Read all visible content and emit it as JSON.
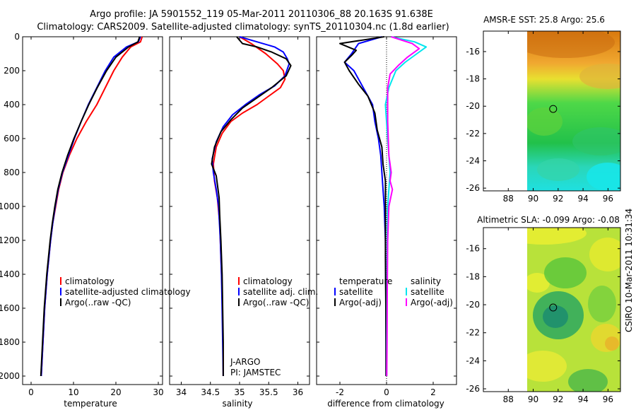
{
  "figure": {
    "title_line1": "Argo profile: JA 5901552_119 05-Mar-2011 20110306_88 20.163S 91.638E",
    "title_line2": "Climatology: CARS2009. Satellite-adjusted climatology: synTS_20110304.nc (1.8d earlier)",
    "credit": "CSIRO 10-Mar-2011 10:31:34",
    "program": "J-ARGO",
    "pi": "PI: JAMSTEC"
  },
  "colors": {
    "climatology": "#ff0000",
    "satellite": "#0000ff",
    "argo": "#000000",
    "sal_satellite": "#00e5ee",
    "sal_argo": "#ff00ff"
  },
  "chart_data": [
    {
      "id": "temperature",
      "type": "line",
      "xlabel": "temperature",
      "ylabel": "",
      "xlim": [
        -2,
        31
      ],
      "ylim": [
        2050,
        0
      ],
      "xticks": [
        0,
        10,
        20,
        30
      ],
      "yticks": [
        0,
        200,
        400,
        600,
        800,
        1000,
        1200,
        1400,
        1600,
        1800,
        2000
      ],
      "legend": [
        "climatology",
        "satellite-adjusted climatology",
        "Argo(..raw -QC)"
      ],
      "series": [
        {
          "name": "climatology",
          "color": "#ff0000",
          "points": [
            [
              26.2,
              0
            ],
            [
              25.8,
              30
            ],
            [
              23.5,
              60
            ],
            [
              21.5,
              120
            ],
            [
              19.5,
              200
            ],
            [
              17.5,
              300
            ],
            [
              15.5,
              400
            ],
            [
              13,
              500
            ],
            [
              10.8,
              600
            ],
            [
              9,
              700
            ],
            [
              7.5,
              800
            ],
            [
              6.5,
              900
            ],
            [
              5.8,
              1000
            ],
            [
              5.1,
              1100
            ],
            [
              4.6,
              1200
            ],
            [
              4.2,
              1300
            ],
            [
              3.8,
              1400
            ],
            [
              3.5,
              1500
            ],
            [
              3.2,
              1600
            ],
            [
              3,
              1700
            ],
            [
              2.8,
              1800
            ],
            [
              2.6,
              1900
            ],
            [
              2.4,
              2000
            ]
          ]
        },
        {
          "name": "satellite-adjusted climatology",
          "color": "#0000ff",
          "points": [
            [
              25.8,
              0
            ],
            [
              25.3,
              30
            ],
            [
              22.5,
              60
            ],
            [
              19.5,
              120
            ],
            [
              17.5,
              200
            ],
            [
              15.5,
              300
            ],
            [
              13.5,
              400
            ],
            [
              11.8,
              500
            ],
            [
              10.2,
              600
            ],
            [
              8.8,
              700
            ],
            [
              7.4,
              800
            ],
            [
              6.4,
              900
            ],
            [
              5.7,
              1000
            ],
            [
              5.1,
              1100
            ],
            [
              4.6,
              1200
            ],
            [
              4.2,
              1300
            ],
            [
              3.8,
              1400
            ],
            [
              3.5,
              1500
            ],
            [
              3.2,
              1600
            ],
            [
              3,
              1700
            ],
            [
              2.8,
              1800
            ],
            [
              2.6,
              1900
            ],
            [
              2.4,
              2000
            ]
          ]
        },
        {
          "name": "Argo(..raw -QC)",
          "color": "#000000",
          "points": [
            [
              25.6,
              0
            ],
            [
              25.2,
              30
            ],
            [
              23,
              60
            ],
            [
              20,
              120
            ],
            [
              17.8,
              200
            ],
            [
              15.6,
              300
            ],
            [
              13.6,
              400
            ],
            [
              11.8,
              500
            ],
            [
              10.1,
              600
            ],
            [
              8.6,
              700
            ],
            [
              7.3,
              800
            ],
            [
              6.3,
              900
            ],
            [
              5.6,
              1000
            ],
            [
              5,
              1100
            ],
            [
              4.5,
              1200
            ],
            [
              4.1,
              1300
            ],
            [
              3.7,
              1400
            ],
            [
              3.4,
              1500
            ],
            [
              3.1,
              1600
            ],
            [
              2.9,
              1700
            ],
            [
              2.7,
              1800
            ],
            [
              2.5,
              1900
            ],
            [
              2.3,
              2000
            ]
          ]
        }
      ]
    },
    {
      "id": "salinity",
      "type": "line",
      "xlabel": "salinity",
      "ylabel": "",
      "xlim": [
        33.8,
        36.2
      ],
      "ylim": [
        2050,
        0
      ],
      "xticks": [
        34,
        34.5,
        35,
        35.5,
        36
      ],
      "yticks": [
        0,
        200,
        400,
        600,
        800,
        1000,
        1200,
        1400,
        1600,
        1800,
        2000
      ],
      "legend": [
        "climatology",
        "satellite adj. clim.",
        "Argo(..raw -QC)"
      ],
      "series": [
        {
          "name": "climatology",
          "color": "#ff0000",
          "points": [
            [
              35,
              0
            ],
            [
              35.2,
              40
            ],
            [
              35.45,
              100
            ],
            [
              35.65,
              160
            ],
            [
              35.75,
              200
            ],
            [
              35.78,
              250
            ],
            [
              35.7,
              300
            ],
            [
              35.5,
              350
            ],
            [
              35.3,
              400
            ],
            [
              35.05,
              450
            ],
            [
              34.85,
              500
            ],
            [
              34.7,
              570
            ],
            [
              34.6,
              650
            ],
            [
              34.55,
              750
            ],
            [
              34.57,
              850
            ],
            [
              34.62,
              950
            ],
            [
              34.66,
              1100
            ],
            [
              34.68,
              1300
            ],
            [
              34.7,
              1500
            ],
            [
              34.71,
              1700
            ],
            [
              34.72,
              1900
            ],
            [
              34.72,
              2000
            ]
          ]
        },
        {
          "name": "satellite adj. clim.",
          "color": "#0000ff",
          "points": [
            [
              35,
              0
            ],
            [
              35.3,
              30
            ],
            [
              35.6,
              60
            ],
            [
              35.75,
              90
            ],
            [
              35.82,
              130
            ],
            [
              35.85,
              160
            ],
            [
              35.78,
              230
            ],
            [
              35.6,
              290
            ],
            [
              35.35,
              340
            ],
            [
              35.1,
              400
            ],
            [
              34.88,
              460
            ],
            [
              34.72,
              530
            ],
            [
              34.6,
              620
            ],
            [
              34.53,
              720
            ],
            [
              34.55,
              800
            ],
            [
              34.6,
              900
            ],
            [
              34.64,
              1000
            ],
            [
              34.67,
              1200
            ],
            [
              34.69,
              1400
            ],
            [
              34.7,
              1600
            ],
            [
              34.71,
              1800
            ],
            [
              34.72,
              2000
            ]
          ]
        },
        {
          "name": "Argo(..raw -QC)",
          "color": "#000000",
          "points": [
            [
              34.95,
              0
            ],
            [
              35,
              20
            ],
            [
              35.05,
              40
            ],
            [
              35.3,
              60
            ],
            [
              35.55,
              90
            ],
            [
              35.8,
              130
            ],
            [
              35.88,
              170
            ],
            [
              35.8,
              230
            ],
            [
              35.55,
              300
            ],
            [
              35.3,
              360
            ],
            [
              35.05,
              420
            ],
            [
              34.85,
              490
            ],
            [
              34.68,
              560
            ],
            [
              34.57,
              650
            ],
            [
              34.52,
              750
            ],
            [
              34.6,
              820
            ],
            [
              34.62,
              870
            ],
            [
              34.65,
              950
            ],
            [
              34.66,
              1050
            ],
            [
              34.68,
              1200
            ],
            [
              34.7,
              1400
            ],
            [
              34.71,
              1600
            ],
            [
              34.72,
              1800
            ],
            [
              34.72,
              2000
            ]
          ]
        }
      ]
    },
    {
      "id": "difference",
      "type": "line",
      "xlabel": "difference from climatology",
      "ylabel": "",
      "xlim": [
        -3,
        3
      ],
      "ylim": [
        2050,
        0
      ],
      "xticks": [
        -2,
        0,
        2
      ],
      "yticks": [
        0,
        200,
        400,
        600,
        800,
        1000,
        1200,
        1400,
        1600,
        1800,
        2000
      ],
      "legend_temperature": [
        "temperature",
        "satellite",
        "Argo(-adj)"
      ],
      "legend_salinity": [
        "salinity",
        "satellite",
        "Argo(-adj)"
      ],
      "series": [
        {
          "name": "temperature satellite",
          "color": "#0000ff",
          "points": [
            [
              -0.2,
              0
            ],
            [
              -1.2,
              40
            ],
            [
              -1.5,
              100
            ],
            [
              -1.8,
              150
            ],
            [
              -1.4,
              200
            ],
            [
              -1,
              300
            ],
            [
              -0.6,
              400
            ],
            [
              -0.5,
              500
            ],
            [
              -0.35,
              600
            ],
            [
              -0.25,
              700
            ],
            [
              -0.2,
              800
            ],
            [
              -0.15,
              900
            ],
            [
              -0.1,
              1000
            ],
            [
              -0.05,
              1200
            ],
            [
              -0.03,
              1500
            ],
            [
              -0.02,
              1800
            ],
            [
              -0.02,
              2000
            ]
          ]
        },
        {
          "name": "temperature Argo(-adj)",
          "color": "#000000",
          "points": [
            [
              -0.1,
              0
            ],
            [
              -2,
              40
            ],
            [
              -1.3,
              80
            ],
            [
              -1.5,
              110
            ],
            [
              -1.8,
              150
            ],
            [
              -1.6,
              200
            ],
            [
              -1.2,
              280
            ],
            [
              -0.8,
              350
            ],
            [
              -0.5,
              450
            ],
            [
              -0.4,
              550
            ],
            [
              -0.2,
              650
            ],
            [
              -0.15,
              750
            ],
            [
              -0.05,
              850
            ],
            [
              -0.05,
              1000
            ],
            [
              -0.05,
              1300
            ],
            [
              -0.03,
              1600
            ],
            [
              -0.02,
              1900
            ],
            [
              -0.02,
              2000
            ]
          ]
        },
        {
          "name": "salinity satellite",
          "color": "#00e5ee",
          "points": [
            [
              0.2,
              0
            ],
            [
              1.2,
              30
            ],
            [
              1.7,
              60
            ],
            [
              1.3,
              100
            ],
            [
              0.8,
              150
            ],
            [
              0.4,
              200
            ],
            [
              0.1,
              300
            ],
            [
              -0.05,
              400
            ],
            [
              0,
              500
            ],
            [
              0.05,
              600
            ],
            [
              0.1,
              700
            ],
            [
              0.15,
              800
            ],
            [
              0.1,
              900
            ],
            [
              0.05,
              1000
            ],
            [
              0.03,
              1200
            ],
            [
              0.02,
              1500
            ],
            [
              0.01,
              1800
            ],
            [
              0.01,
              2000
            ]
          ]
        },
        {
          "name": "salinity Argo(-adj)",
          "color": "#ff00ff",
          "points": [
            [
              0.2,
              0
            ],
            [
              1.1,
              40
            ],
            [
              1.4,
              70
            ],
            [
              0.9,
              120
            ],
            [
              0.5,
              170
            ],
            [
              0.15,
              220
            ],
            [
              0.05,
              300
            ],
            [
              0.05,
              500
            ],
            [
              0.1,
              700
            ],
            [
              0.2,
              800
            ],
            [
              0.15,
              850
            ],
            [
              0.25,
              900
            ],
            [
              0.1,
              1000
            ],
            [
              0.05,
              1200
            ],
            [
              0.03,
              1500
            ],
            [
              0.02,
              1800
            ],
            [
              0.01,
              2000
            ]
          ]
        }
      ]
    },
    {
      "id": "sst_map",
      "type": "heatmap",
      "title": "AMSR-E SST: 25.8 Argo: 25.6",
      "xlim": [
        86,
        97
      ],
      "ylim": [
        -26.2,
        -14.5
      ],
      "xticks": [
        88,
        90,
        92,
        94,
        96
      ],
      "yticks": [
        -16,
        -18,
        -20,
        -22,
        -24,
        -26
      ],
      "marker": {
        "lon": 91.6,
        "lat": -20.2
      }
    },
    {
      "id": "sla_map",
      "type": "heatmap",
      "title": "Altimetric SLA: -0.099 Argo: -0.08",
      "xlim": [
        86,
        97
      ],
      "ylim": [
        -26.2,
        -14.5
      ],
      "xticks": [
        88,
        90,
        92,
        94,
        96
      ],
      "yticks": [
        -16,
        -18,
        -20,
        -22,
        -24,
        -26
      ],
      "marker": {
        "lon": 91.6,
        "lat": -20.2
      }
    }
  ]
}
